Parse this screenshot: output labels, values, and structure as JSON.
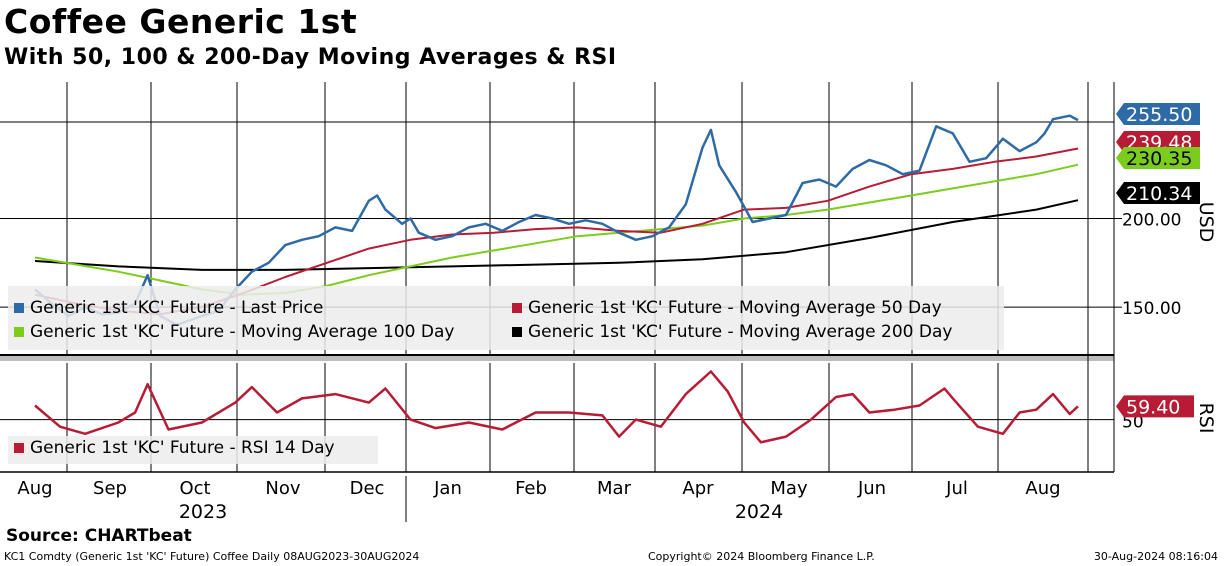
{
  "header": {
    "title": "Coffee Generic 1st",
    "subtitle": "With 50, 100 & 200-Day Moving Averages & RSI"
  },
  "footer": {
    "source": "Source: CHARTbeat",
    "ticker": "KC1 Comdty (Generic 1st 'KC' Future) Coffee  Daily 08AUG2023-30AUG2024",
    "copyright": "Copyright© 2024 Bloomberg Finance L.P.",
    "timestamp": "30-Aug-2024 08:16:04"
  },
  "colors": {
    "price": "#2e6aa6",
    "ma50": "#b81c35",
    "ma100": "#7ccc1d",
    "ma200": "#000000",
    "rsi": "#b81c35"
  },
  "chart_data": [
    {
      "type": "line",
      "panel": "price",
      "ylabel": "USD",
      "ylim": [
        123,
        277
      ],
      "yticks": [
        150,
        200
      ],
      "ytick_labels": [
        "150.00",
        "200.00"
      ],
      "x_months": [
        "Aug",
        "Sep",
        "Oct",
        "Nov",
        "Dec",
        "Jan",
        "Feb",
        "Mar",
        "Apr",
        "May",
        "Jun",
        "Jul",
        "Aug"
      ],
      "x_years": [
        "2023",
        "2024"
      ],
      "legend": [
        "Generic 1st 'KC' Future - Last Price",
        "Generic 1st 'KC' Future - Moving Average 50 Day",
        "Generic 1st 'KC' Future - Moving Average 100 Day",
        "Generic 1st 'KC' Future - Moving Average 200 Day"
      ],
      "last_values": [
        {
          "name": "Last Price",
          "label": "255.50",
          "value": 255.5,
          "color": "#2e6aa6"
        },
        {
          "name": "MA 50",
          "label": "239.48",
          "value": 239.48,
          "color": "#b81c35"
        },
        {
          "name": "MA 100",
          "label": "230.35",
          "value": 230.35,
          "color": "#7ccc1d"
        },
        {
          "name": "MA 200",
          "label": "210.34",
          "value": 210.34,
          "color": "#000000"
        }
      ],
      "series": [
        {
          "name": "Last Price",
          "t": [
            0,
            0.2,
            0.4,
            0.6,
            0.8,
            1.0,
            1.2,
            1.35,
            1.5,
            1.7,
            2.0,
            2.2,
            2.4,
            2.6,
            2.8,
            3.0,
            3.2,
            3.4,
            3.6,
            3.8,
            4.0,
            4.1,
            4.2,
            4.4,
            4.5,
            4.6,
            4.8,
            5.0,
            5.2,
            5.4,
            5.6,
            5.8,
            6.0,
            6.2,
            6.4,
            6.6,
            6.8,
            7.0,
            7.2,
            7.4,
            7.6,
            7.8,
            8.0,
            8.1,
            8.2,
            8.4,
            8.6,
            8.8,
            9.0,
            9.2,
            9.4,
            9.6,
            9.8,
            10.0,
            10.2,
            10.4,
            10.6,
            10.8,
            11.0,
            11.2,
            11.4,
            11.6,
            11.8,
            12.0,
            12.1,
            12.2,
            12.4,
            12.5
          ],
          "values": [
            160,
            152,
            145,
            150,
            146,
            147,
            152,
            168,
            145,
            140,
            145,
            148,
            160,
            170,
            175,
            185,
            188,
            190,
            195,
            193,
            210,
            213,
            205,
            197,
            200,
            192,
            188,
            190,
            195,
            197,
            193,
            198,
            202,
            200,
            197,
            199,
            197,
            192,
            188,
            190,
            195,
            208,
            240,
            250,
            230,
            215,
            198,
            200,
            202,
            220,
            222,
            218,
            228,
            233,
            230,
            225,
            227,
            252,
            248,
            232,
            234,
            245,
            238,
            243,
            248,
            256,
            258,
            255.5
          ]
        },
        {
          "name": "MA 50",
          "t": [
            0,
            0.5,
            1.0,
            1.5,
            2.0,
            2.5,
            3.0,
            3.5,
            4.0,
            4.5,
            5.0,
            5.5,
            6.0,
            6.5,
            7.0,
            7.5,
            8.0,
            8.5,
            9.0,
            9.5,
            10.0,
            10.5,
            11.0,
            11.5,
            12.0,
            12.5
          ],
          "values": [
            157,
            152,
            148,
            146,
            150,
            158,
            167,
            175,
            183,
            188,
            191,
            192,
            194,
            195,
            193,
            192,
            197,
            205,
            206,
            210,
            218,
            225,
            228,
            232,
            235,
            239.48
          ]
        },
        {
          "name": "MA 100",
          "t": [
            0,
            0.5,
            1.0,
            1.5,
            2.0,
            2.5,
            3.0,
            3.5,
            4.0,
            4.5,
            5.0,
            5.5,
            6.0,
            6.5,
            7.0,
            7.5,
            8.0,
            8.5,
            9.0,
            9.5,
            10.0,
            10.5,
            11.0,
            11.5,
            12.0,
            12.5
          ],
          "values": [
            178,
            174,
            170,
            165,
            160,
            157,
            158,
            162,
            168,
            173,
            178,
            182,
            186,
            190,
            192,
            194,
            196,
            200,
            202,
            205,
            209,
            213,
            217,
            221,
            225,
            230.35
          ]
        },
        {
          "name": "MA 200",
          "t": [
            0,
            1,
            2,
            3,
            4,
            5,
            6,
            7,
            8,
            9,
            10,
            11,
            12,
            12.5
          ],
          "values": [
            176,
            173,
            171,
            171,
            172,
            173,
            174,
            175,
            177,
            181,
            189,
            198,
            205,
            210.34
          ]
        }
      ]
    },
    {
      "type": "line",
      "panel": "rsi",
      "ylabel": "RSI",
      "ylim": [
        13,
        90
      ],
      "yticks": [
        50
      ],
      "ytick_labels": [
        "50"
      ],
      "legend": [
        "Generic 1st 'KC' Future - RSI 14 Day"
      ],
      "last_value": {
        "label": "59.40",
        "value": 59.4
      },
      "series": [
        {
          "name": "RSI 14 Day",
          "t": [
            0,
            0.3,
            0.6,
            1.0,
            1.2,
            1.35,
            1.6,
            2.0,
            2.4,
            2.6,
            2.9,
            3.2,
            3.6,
            4.0,
            4.2,
            4.5,
            4.8,
            5.2,
            5.6,
            6.0,
            6.4,
            6.8,
            7.0,
            7.2,
            7.5,
            7.8,
            8.1,
            8.3,
            8.5,
            8.7,
            9.0,
            9.3,
            9.6,
            9.8,
            10.0,
            10.3,
            10.6,
            10.9,
            11.0,
            11.3,
            11.6,
            11.8,
            12.0,
            12.2,
            12.4,
            12.5
          ],
          "values": [
            60,
            45,
            40,
            48,
            55,
            75,
            43,
            48,
            62,
            73,
            55,
            65,
            68,
            62,
            72,
            50,
            44,
            48,
            43,
            55,
            55,
            53,
            38,
            50,
            45,
            68,
            84,
            70,
            48,
            34,
            38,
            50,
            66,
            68,
            55,
            57,
            60,
            72,
            65,
            45,
            40,
            55,
            57,
            68,
            54,
            59.4
          ]
        }
      ]
    }
  ]
}
